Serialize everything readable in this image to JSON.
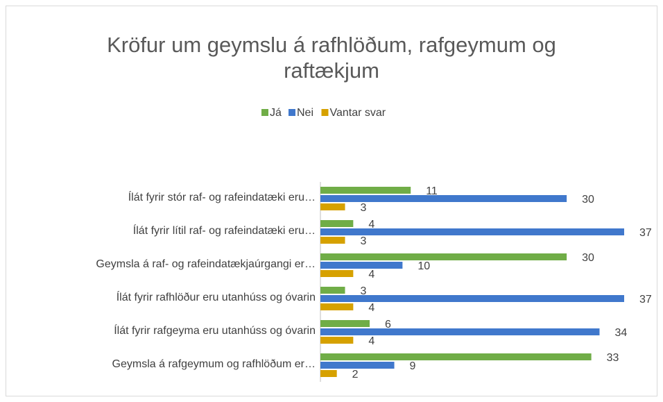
{
  "chart_data": {
    "type": "hbar",
    "title": "Kröfur um geymslu á rafhlöðum, rafgeymum og raftækjum",
    "categories": [
      "Ílát fyrir stór raf- og rafeindatæki eru…",
      "Ílát fyrir lítil raf- og rafeindatæki eru…",
      "Geymsla á raf- og rafeindatækjaúrgangi er…",
      "Ílát fyrir rafhlöður eru utanhúss og óvarin",
      "Ílát fyrir rafgeyma eru utanhúss og óvarin",
      "Geymsla á rafgeymum og rafhlöðum er…"
    ],
    "series": [
      {
        "name": "Já",
        "color": "#70ad47",
        "values": [
          11,
          4,
          30,
          3,
          6,
          33
        ]
      },
      {
        "name": "Nei",
        "color": "#4078cc",
        "values": [
          30,
          37,
          10,
          37,
          34,
          9
        ]
      },
      {
        "name": "Vantar svar",
        "color": "#d6a100",
        "values": [
          3,
          3,
          4,
          4,
          4,
          2
        ]
      }
    ],
    "legend": "top"
  }
}
